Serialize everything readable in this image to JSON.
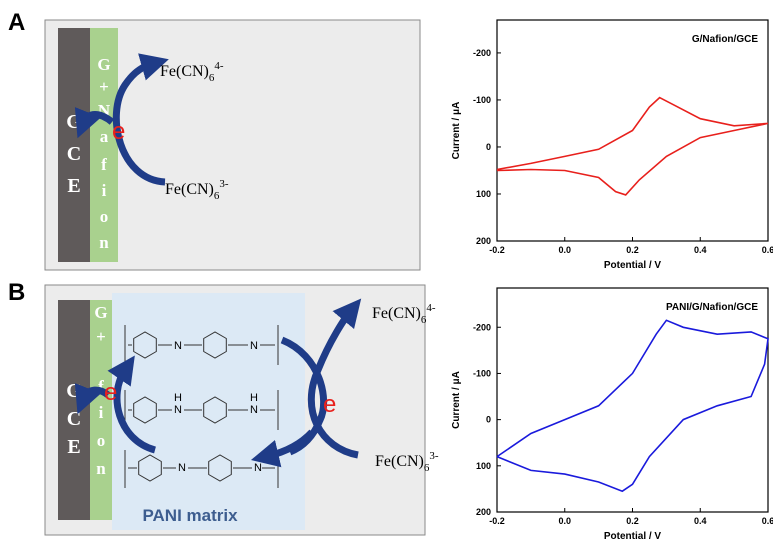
{
  "panel_labels": [
    "A",
    "B"
  ],
  "schematic_a": {
    "electrode": [
      "G",
      "C",
      "E"
    ],
    "layer": [
      "G",
      "+",
      "N",
      "a",
      "f",
      "i",
      "o",
      "n"
    ],
    "electron": "e",
    "species": [
      {
        "base": "Fe(CN)",
        "sub": "6",
        "sup": "4-"
      },
      {
        "base": "Fe(CN)",
        "sub": "6",
        "sup": "3-"
      }
    ]
  },
  "schematic_b": {
    "electrode": [
      "G",
      "C",
      "E"
    ],
    "layer": [
      "G",
      "+",
      "f",
      "i",
      "o",
      "n"
    ],
    "electrons": [
      "e",
      "e"
    ],
    "species": [
      {
        "base": "Fe(CN)",
        "sub": "6",
        "sup": "4-"
      },
      {
        "base": "Fe(CN)",
        "sub": "6",
        "sup": "3-"
      }
    ],
    "structure_atoms": [
      [
        "N",
        "N"
      ],
      [
        "N",
        "N"
      ],
      [
        "N",
        "N"
      ]
    ],
    "hydrogens": [
      "H",
      "H"
    ],
    "matrix_label": "PANI matrix"
  },
  "chart_data": [
    {
      "type": "line",
      "title": "G/Nafion/GCE",
      "x_label": "Potential / V",
      "y_label": "Current / μA",
      "xlim": [
        -0.2,
        0.6
      ],
      "ylim": [
        -270,
        200
      ],
      "y_inverted": true,
      "xticks": [
        -0.2,
        {
          "value": 0,
          "label": "0.0"
        },
        0.2,
        0.4,
        0.6
      ],
      "yticks": [
        -200,
        -100,
        0,
        100,
        200
      ],
      "x": [
        -0.2,
        -0.1,
        0.0,
        0.1,
        0.2,
        0.25,
        0.28,
        0.32,
        0.4,
        0.5,
        0.6,
        0.5,
        0.4,
        0.3,
        0.22,
        0.18,
        0.15,
        0.1,
        0.0,
        -0.1,
        -0.2
      ],
      "series": [
        {
          "color": "#e8201c",
          "values": [
            48,
            35,
            20,
            5,
            -35,
            -85,
            -105,
            -90,
            -60,
            -45,
            -50,
            -35,
            -20,
            20,
            70,
            102,
            95,
            65,
            50,
            48,
            50
          ]
        }
      ]
    },
    {
      "type": "line",
      "title": "PANI/G/Nafion/GCE",
      "x_label": "Potential / V",
      "y_label": "Current / μA",
      "xlim": [
        -0.2,
        0.6
      ],
      "ylim": [
        -285,
        200
      ],
      "y_inverted": true,
      "xticks": [
        -0.2,
        {
          "value": 0,
          "label": "0.0"
        },
        0.2,
        0.4,
        0.6
      ],
      "yticks": [
        -200,
        -100,
        0,
        100,
        200
      ],
      "x": [
        -0.2,
        -0.1,
        0.0,
        0.1,
        0.2,
        0.27,
        0.3,
        0.35,
        0.45,
        0.55,
        0.6,
        0.59,
        0.55,
        0.45,
        0.35,
        0.25,
        0.2,
        0.17,
        0.1,
        0.0,
        -0.1,
        -0.2
      ],
      "series": [
        {
          "color": "#1a1adc",
          "values": [
            80,
            30,
            0,
            -30,
            -100,
            -185,
            -215,
            -200,
            -185,
            -190,
            -175,
            -120,
            -50,
            -30,
            0,
            80,
            140,
            155,
            135,
            118,
            110,
            80
          ]
        }
      ]
    }
  ]
}
